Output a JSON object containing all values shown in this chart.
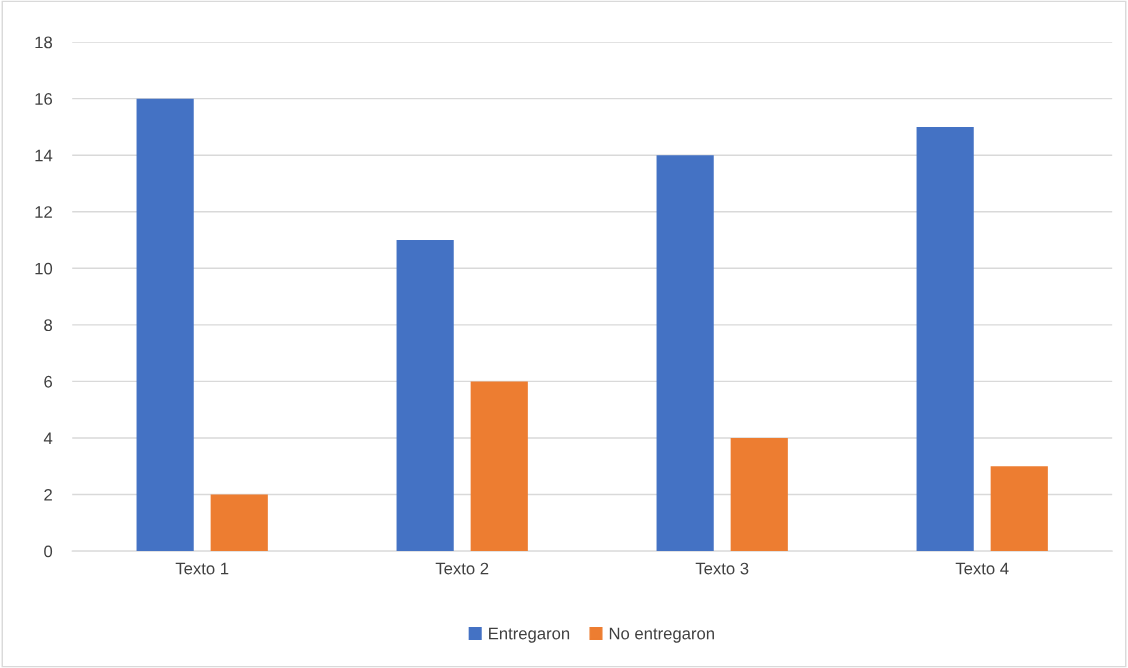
{
  "chart_data": {
    "type": "bar",
    "categories": [
      "Texto 1",
      "Texto 2",
      "Texto 3",
      "Texto 4"
    ],
    "series": [
      {
        "name": "Entregaron",
        "color": "#4472c4",
        "values": [
          16,
          11,
          14,
          15
        ]
      },
      {
        "name": "No entregaron",
        "color": "#ed7d31",
        "values": [
          2,
          6,
          4,
          3
        ]
      }
    ],
    "ylim": [
      0,
      18
    ],
    "yticks": [
      0,
      2,
      4,
      6,
      8,
      10,
      12,
      14,
      16,
      18
    ],
    "grid": "y",
    "legend": "bottom"
  }
}
